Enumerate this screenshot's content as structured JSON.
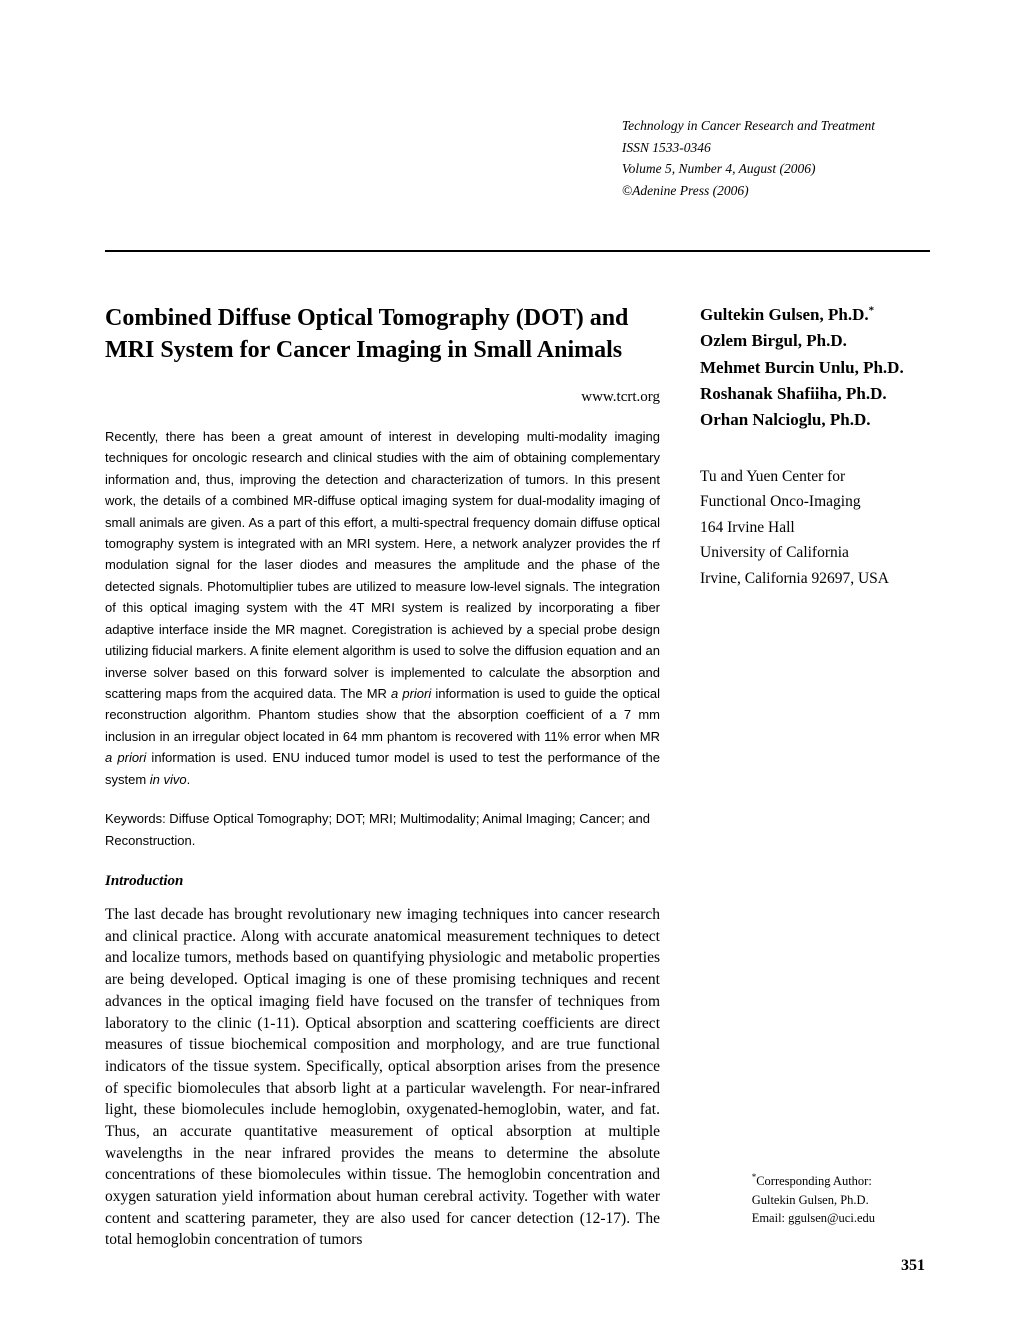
{
  "header": {
    "journal": "Technology in Cancer Research and Treatment",
    "issn": "ISSN 1533-0346",
    "issue": "Volume 5, Number 4, August (2006)",
    "copyright": "©Adenine Press (2006)"
  },
  "article": {
    "title": "Combined Diffuse Optical Tomography (DOT) and MRI System for Cancer Imaging in Small Animals",
    "website": "www.tcrt.org",
    "abstract_part1": "Recently, there has been a great amount of interest in developing multi-modality imaging techniques for oncologic research and clinical studies with the aim of obtaining complementary information and, thus, improving the detection and characterization of tumors. In this present work, the details of a combined MR-diffuse optical imaging system for dual-modality imaging of small animals are given. As a part of this effort, a multi-spectral frequency domain diffuse optical tomography system is integrated with an MRI system. Here, a network analyzer provides the rf modulation signal for the laser diodes and measures the amplitude and the phase of the detected signals. Photomultiplier tubes are utilized to measure low-level signals. The integration of this optical imaging system with the 4T MRI system is realized by incorporating a fiber adaptive interface inside the MR magnet. Coregistration is achieved by a special probe design utilizing fiducial markers. A finite element algorithm is used to solve the diffusion equation and an inverse solver based on this forward solver is implemented to calculate the absorption and scattering maps from the acquired data. The MR ",
    "abstract_italic1": "a priori",
    "abstract_part2": " information is used to guide the optical reconstruction algorithm. Phantom studies show that the absorption coefficient of a 7 mm inclusion in an irregular object located in 64 mm phantom is recovered with 11% error when MR ",
    "abstract_italic2": "a priori",
    "abstract_part3": " information is used. ENU induced tumor model is used to test the performance of the system ",
    "abstract_italic3": "in vivo",
    "abstract_part4": ".",
    "keywords": "Keywords: Diffuse Optical Tomography; DOT; MRI; Multimodality; Animal Imaging; Cancer; and Reconstruction.",
    "intro_heading": "Introduction",
    "intro_body": "The last decade has brought revolutionary new imaging techniques into cancer research and clinical practice. Along with accurate anatomical measurement techniques to detect and localize tumors, methods based on quantifying physiologic and metabolic properties are being developed. Optical imaging is one of these promising techniques and recent advances in the optical imaging field have focused on the transfer of techniques from laboratory to the clinic (1-11). Optical absorption and scattering coefficients are direct measures of tissue biochemical composition and morphology, and are true functional indicators of the tissue system. Specifically, optical absorption arises from the presence of specific biomolecules that absorb light at a particular wavelength. For near-infrared light, these biomolecules include hemoglobin, oxygenated-hemoglobin, water, and fat. Thus, an accurate quantitative measurement of optical absorption at multiple wavelengths in the near infrared provides the means to determine the absolute concentrations of these biomolecules within tissue. The hemoglobin concentration and oxygen saturation yield information about human cerebral activity. Together with water content and scattering parameter, they are also used for cancer detection (12-17). The total hemoglobin concentration of tumors"
  },
  "authors": {
    "a1_name": "Gultekin Gulsen, Ph.D.",
    "a1_mark": "*",
    "a2": "Ozlem Birgul, Ph.D.",
    "a3": "Mehmet Burcin Unlu, Ph.D.",
    "a4": "Roshanak Shafiiha, Ph.D.",
    "a5": "Orhan Nalcioglu, Ph.D."
  },
  "affiliation": {
    "l1": "Tu and Yuen Center for",
    "l2": "Functional Onco-Imaging",
    "l3": "164 Irvine Hall",
    "l4": "University of California",
    "l5": "Irvine, California  92697, USA"
  },
  "corresponding": {
    "mark": "*",
    "label": "Corresponding Author:",
    "name": "Gultekin Gulsen, Ph.D.",
    "email": "Email: ggulsen@uci.edu"
  },
  "page_number": "351"
}
